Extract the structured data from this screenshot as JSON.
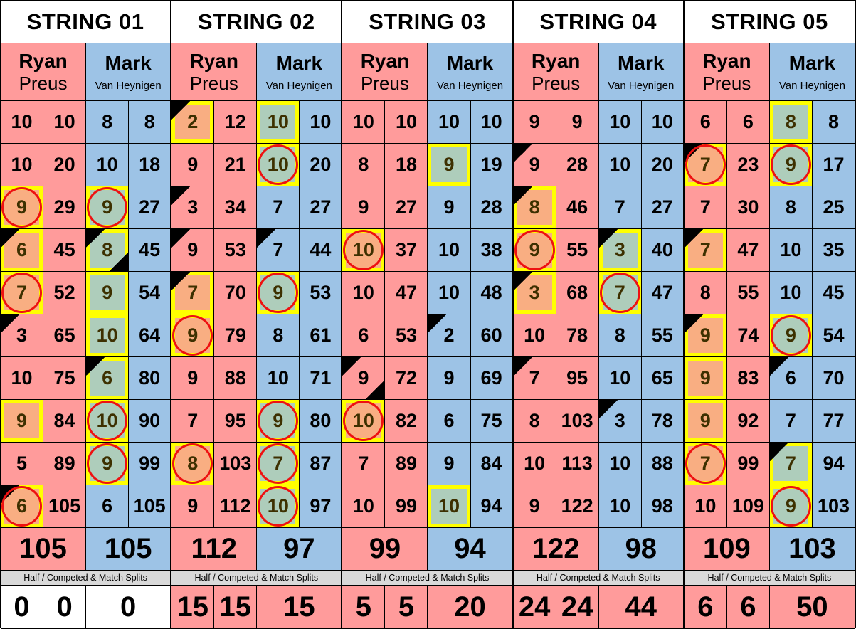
{
  "colors": {
    "ryan": "#ff9b9b",
    "mark": "#9dc3e6",
    "highlight": "#ffff00",
    "circle": "#ee1111"
  },
  "players": {
    "ryan": {
      "first": "Ryan",
      "last": "Preus"
    },
    "mark": {
      "first": "Mark",
      "last": "Van Heynigen"
    }
  },
  "splits_label": "Half / Competed & Match Splits",
  "mark_legend": {
    "h": "yellow highlight",
    "c": "red circle",
    "t": "top-left black corner",
    "b": "bottom-right black corner"
  },
  "strings": [
    {
      "title": "STRING 01",
      "rows": [
        [
          10,
          "",
          10,
          8,
          "",
          8
        ],
        [
          10,
          "",
          20,
          10,
          "",
          18
        ],
        [
          9,
          "hc",
          29,
          9,
          "hc",
          27
        ],
        [
          6,
          "ht",
          45,
          8,
          "htb",
          45
        ],
        [
          7,
          "hc",
          52,
          9,
          "h",
          54
        ],
        [
          3,
          "t",
          65,
          10,
          "h",
          64
        ],
        [
          10,
          "",
          75,
          6,
          "ht",
          80
        ],
        [
          9,
          "h",
          84,
          10,
          "hc",
          90
        ],
        [
          5,
          "",
          89,
          9,
          "hc",
          99
        ],
        [
          6,
          "htc",
          105,
          6,
          "",
          105
        ]
      ],
      "total_ryan": 105,
      "total_mark": 105,
      "splits": {
        "a": 0,
        "b": 0,
        "match": 0,
        "winner": "none"
      }
    },
    {
      "title": "STRING 02",
      "rows": [
        [
          2,
          "ht",
          12,
          10,
          "h",
          10
        ],
        [
          9,
          "",
          21,
          10,
          "hc",
          20
        ],
        [
          3,
          "t",
          34,
          7,
          "",
          27
        ],
        [
          9,
          "t",
          53,
          7,
          "t",
          44
        ],
        [
          7,
          "ht",
          70,
          9,
          "hc",
          53
        ],
        [
          9,
          "hc",
          79,
          8,
          "",
          61
        ],
        [
          9,
          "",
          88,
          10,
          "",
          71
        ],
        [
          7,
          "",
          95,
          9,
          "hc",
          80
        ],
        [
          8,
          "hc",
          103,
          7,
          "hc",
          87
        ],
        [
          9,
          "",
          112,
          10,
          "hc",
          97
        ]
      ],
      "total_ryan": 112,
      "total_mark": 97,
      "splits": {
        "a": 15,
        "b": 15,
        "match": 15,
        "winner": "ryan"
      }
    },
    {
      "title": "STRING 03",
      "rows": [
        [
          10,
          "",
          10,
          10,
          "",
          10
        ],
        [
          8,
          "",
          18,
          9,
          "h",
          19
        ],
        [
          9,
          "",
          27,
          9,
          "",
          28
        ],
        [
          10,
          "hc",
          37,
          10,
          "",
          38
        ],
        [
          10,
          "",
          47,
          10,
          "",
          48
        ],
        [
          6,
          "",
          53,
          2,
          "t",
          60
        ],
        [
          9,
          "tb",
          72,
          9,
          "",
          69
        ],
        [
          10,
          "hc",
          82,
          6,
          "",
          75
        ],
        [
          7,
          "",
          89,
          9,
          "",
          84
        ],
        [
          10,
          "",
          99,
          10,
          "h",
          94
        ]
      ],
      "total_ryan": 99,
      "total_mark": 94,
      "splits": {
        "a": 5,
        "b": 5,
        "match": 20,
        "winner": "ryan"
      }
    },
    {
      "title": "STRING 04",
      "rows": [
        [
          9,
          "",
          9,
          10,
          "",
          10
        ],
        [
          9,
          "t",
          28,
          10,
          "",
          20
        ],
        [
          8,
          "ht",
          46,
          7,
          "",
          27
        ],
        [
          9,
          "hc",
          55,
          3,
          "ht",
          40
        ],
        [
          3,
          "ht",
          68,
          7,
          "hc",
          47
        ],
        [
          10,
          "",
          78,
          8,
          "",
          55
        ],
        [
          7,
          "t",
          95,
          10,
          "",
          65
        ],
        [
          8,
          "",
          103,
          3,
          "t",
          78
        ],
        [
          10,
          "",
          113,
          10,
          "",
          88
        ],
        [
          9,
          "",
          122,
          10,
          "",
          98
        ]
      ],
      "total_ryan": 122,
      "total_mark": 98,
      "splits": {
        "a": 24,
        "b": 24,
        "match": 44,
        "winner": "ryan"
      }
    },
    {
      "title": "STRING 05",
      "rows": [
        [
          6,
          "",
          6,
          8,
          "h",
          8
        ],
        [
          7,
          "htc",
          23,
          9,
          "hc",
          17
        ],
        [
          7,
          "",
          30,
          8,
          "",
          25
        ],
        [
          7,
          "ht",
          47,
          10,
          "",
          35
        ],
        [
          8,
          "",
          55,
          10,
          "",
          45
        ],
        [
          9,
          "ht",
          74,
          9,
          "hc",
          54
        ],
        [
          9,
          "h",
          83,
          6,
          "t",
          70
        ],
        [
          9,
          "h",
          92,
          7,
          "",
          77
        ],
        [
          7,
          "hc",
          99,
          7,
          "ht",
          94
        ],
        [
          10,
          "",
          109,
          9,
          "hc",
          103
        ]
      ],
      "total_ryan": 109,
      "total_mark": 103,
      "splits": {
        "a": 6,
        "b": 6,
        "match": 50,
        "winner": "ryan"
      }
    }
  ]
}
